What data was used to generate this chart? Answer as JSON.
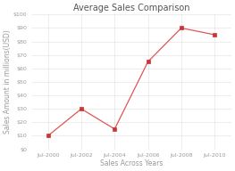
{
  "title": "Average Sales Comparison",
  "xlabel": "Sales Across Years",
  "ylabel": "Sales Amount in millions(USD)",
  "x_labels": [
    "Jul-2000",
    "Jul-2002",
    "Jul-2004",
    "Jul-2006",
    "Jul-2008",
    "Jul-2010"
  ],
  "x_values": [
    2000,
    2002,
    2004,
    2006,
    2008,
    2010
  ],
  "y_values": [
    10,
    30,
    15,
    65,
    90,
    85
  ],
  "ylim": [
    0,
    100
  ],
  "y_ticks": [
    0,
    10,
    20,
    30,
    40,
    50,
    60,
    70,
    80,
    90,
    100
  ],
  "y_tick_labels": [
    "$0",
    "$10",
    "$20",
    "$30",
    "$40",
    "$50",
    "$60",
    "$70",
    "$80",
    "$90",
    "$100"
  ],
  "line_color": "#e05555",
  "marker_color": "#cc3333",
  "bg_color": "#ffffff",
  "grid_color": "#e0e0e0",
  "text_color": "#999999",
  "title_color": "#555555",
  "title_fontsize": 7,
  "label_fontsize": 5.5,
  "tick_fontsize": 4.5,
  "linewidth": 0.9,
  "markersize": 2.5
}
